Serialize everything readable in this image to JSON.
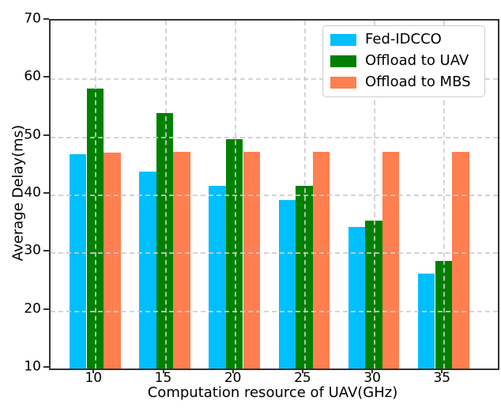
{
  "chart_data": {
    "type": "bar",
    "title": "",
    "xlabel": "Computation resource of UAV(GHz)",
    "ylabel": "Average Delay(ms)",
    "categories": [
      "10",
      "15",
      "20",
      "25",
      "30",
      "35"
    ],
    "series": [
      {
        "name": "Fed-IDCCO",
        "color": "#00BFFF",
        "values": [
          47.0,
          44.0,
          41.5,
          39.0,
          34.4,
          26.4
        ]
      },
      {
        "name": "Offload to UAV",
        "color": "#008000",
        "values": [
          58.3,
          54.0,
          49.5,
          41.5,
          35.5,
          28.5
        ]
      },
      {
        "name": "Offload to MBS",
        "color": "#FF7F50",
        "values": [
          47.2,
          47.3,
          47.4,
          47.4,
          47.4,
          47.4
        ]
      }
    ],
    "ylim": [
      10,
      70
    ],
    "yticks": [
      10,
      20,
      30,
      40,
      50,
      60,
      70
    ],
    "grid": true,
    "legend_position": "upper-right"
  },
  "colors": {
    "spine": "#333333",
    "grid": "#c8c8c8",
    "text": "#000000",
    "background": "#ffffff"
  }
}
